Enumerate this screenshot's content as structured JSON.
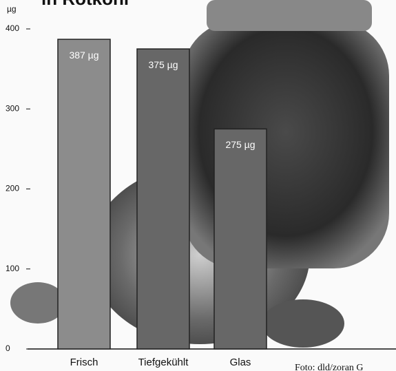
{
  "chart_data": {
    "type": "bar",
    "title": "in Rotkohl",
    "y_label": "µg",
    "categories": [
      "Frisch",
      "Tiefgekühlt",
      "Glas"
    ],
    "values": [
      387,
      375,
      275
    ],
    "value_labels": [
      "387 µg",
      "375 µg",
      "275 µg"
    ],
    "colors": [
      "#8c8c8c",
      "#676767",
      "#676767"
    ],
    "ylim": [
      0,
      400
    ],
    "yticks": [
      0,
      100,
      200,
      300,
      400
    ],
    "credit": "Foto: dld/zoran G"
  }
}
